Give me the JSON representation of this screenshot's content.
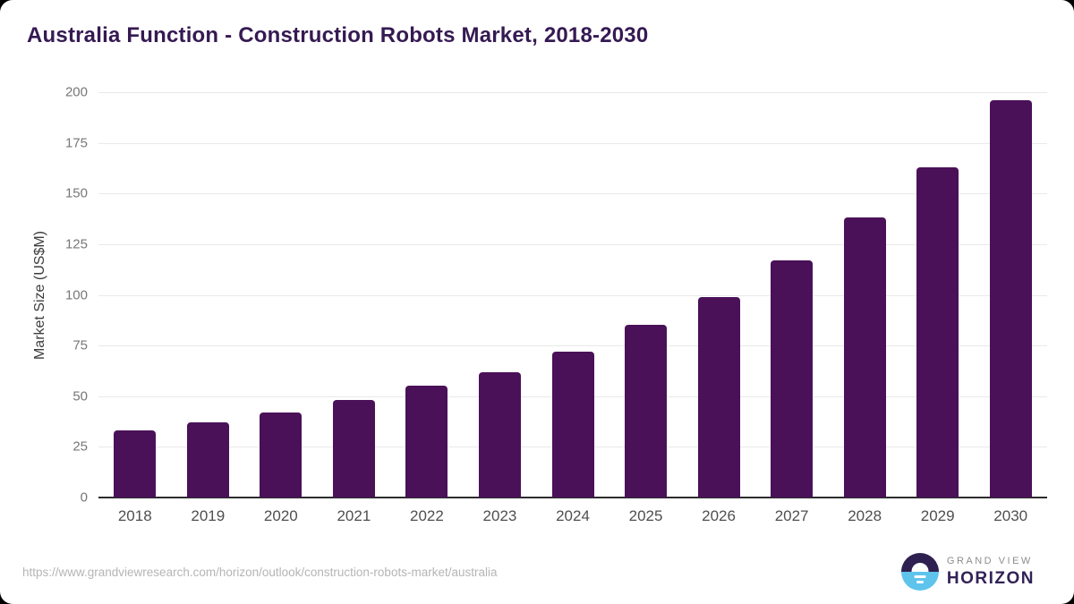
{
  "title": "Australia Function - Construction Robots Market, 2018-2030",
  "chart_data": {
    "type": "bar",
    "categories": [
      "2018",
      "2019",
      "2020",
      "2021",
      "2022",
      "2023",
      "2024",
      "2025",
      "2026",
      "2027",
      "2028",
      "2029",
      "2030"
    ],
    "values": [
      33,
      37,
      42,
      48,
      55,
      62,
      72,
      85,
      99,
      117,
      138,
      163,
      196
    ],
    "title": "Australia Function - Construction Robots Market, 2018-2030",
    "xlabel": "",
    "ylabel": "Market Size (US$M)",
    "ylim": [
      0,
      200
    ],
    "ytick_step": 25,
    "yticks": [
      0,
      25,
      50,
      75,
      100,
      125,
      150,
      175,
      200
    ],
    "grid": true,
    "legend": "none",
    "bar_color": "#4a1158"
  },
  "footer": {
    "source_url": "https://www.grandviewresearch.com/horizon/outlook/construction-robots-market/australia",
    "logo": {
      "line1": "GRAND VIEW",
      "line2": "HORIZON",
      "circle_top_color": "#2e2051",
      "circle_bottom_color": "#5fc4ec"
    }
  },
  "colors": {
    "bar": "#4a1158",
    "title_text": "#351a52",
    "gridline": "#e9e9e9",
    "axis_line": "#2d2d2d",
    "y_tick_text": "#777777",
    "x_tick_text": "#4f4f4f",
    "background": "#ffffff"
  }
}
